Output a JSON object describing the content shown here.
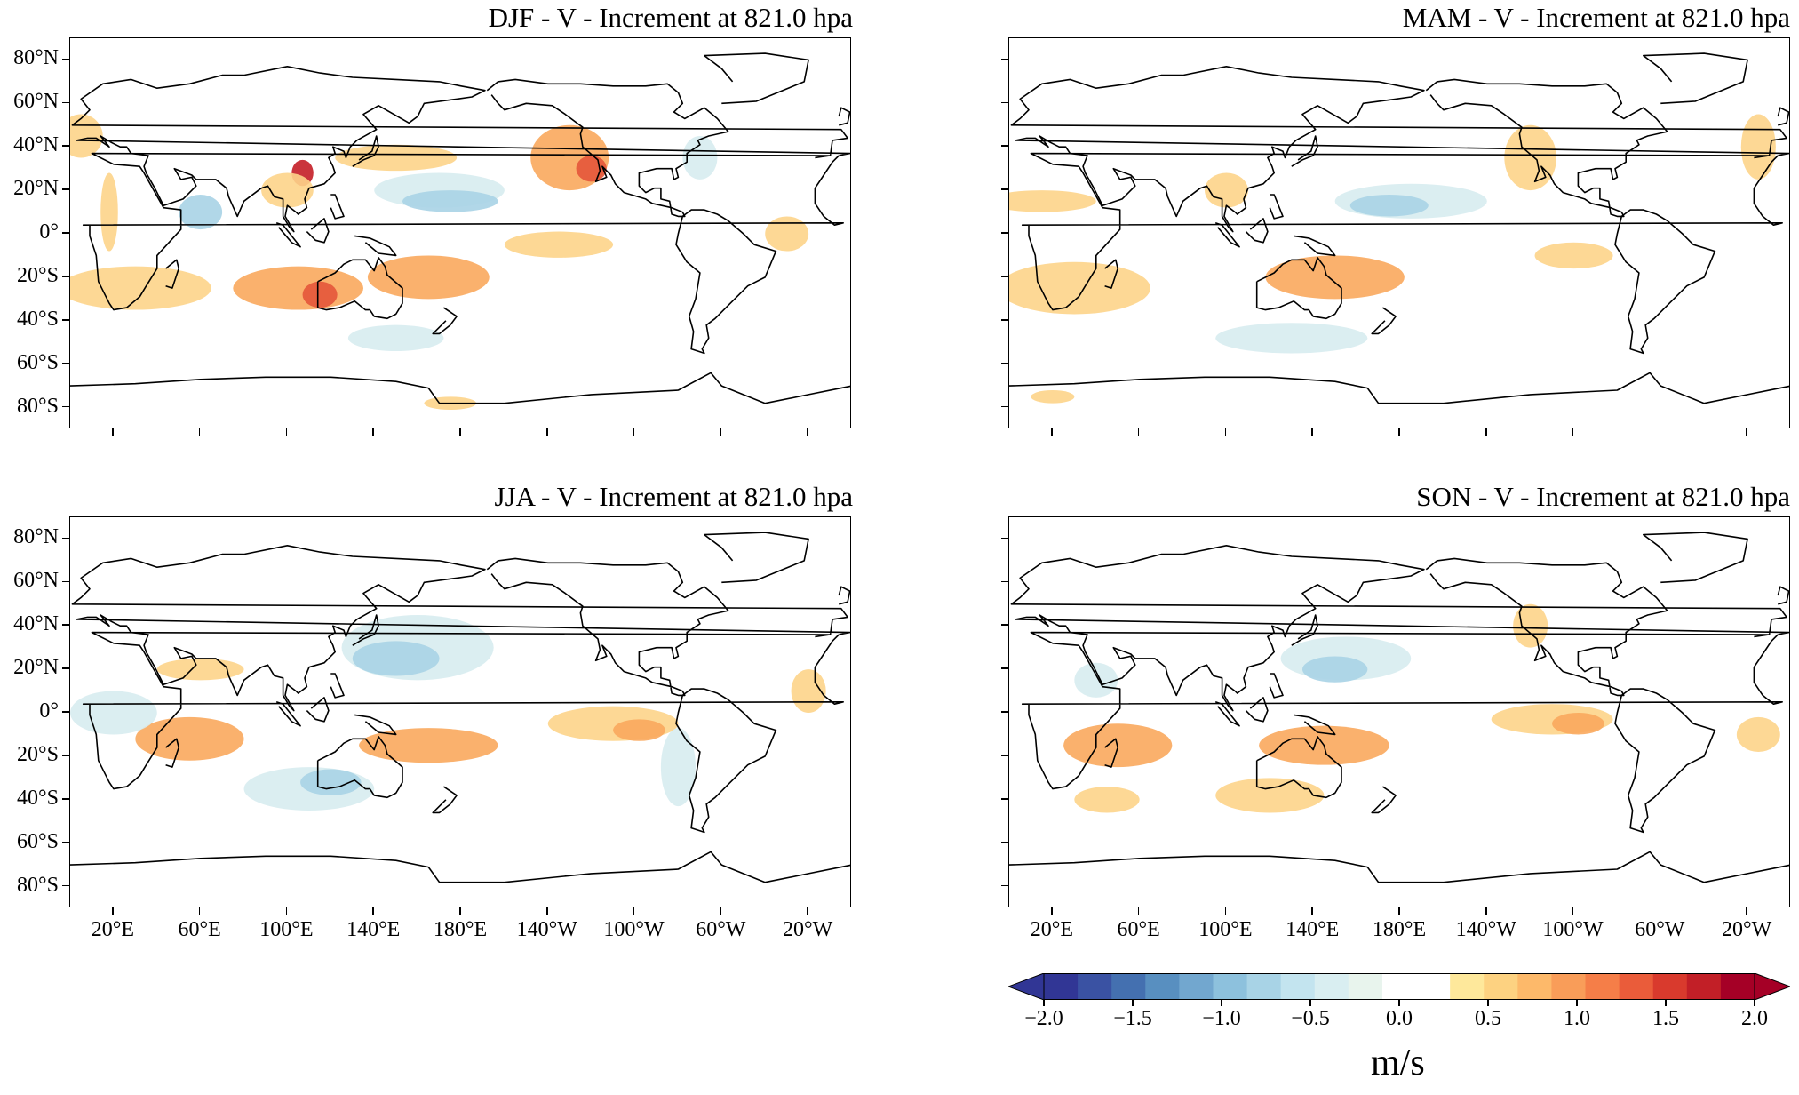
{
  "panels": [
    {
      "id": "djf",
      "title": "DJF - V - Increment at 821.0 hpa",
      "show_lat_labels": true,
      "show_lon_labels": false
    },
    {
      "id": "mam",
      "title": "MAM - V - Increment at 821.0 hpa",
      "show_lat_labels": false,
      "show_lon_labels": false
    },
    {
      "id": "jja",
      "title": "JJA - V - Increment at 821.0 hpa",
      "show_lat_labels": true,
      "show_lon_labels": true
    },
    {
      "id": "son",
      "title": "SON - V - Increment at 821.0 hpa",
      "show_lat_labels": false,
      "show_lon_labels": true
    }
  ],
  "lat_labels": [
    "80°N",
    "60°N",
    "40°N",
    "20°N",
    "0°",
    "20°S",
    "40°S",
    "60°S",
    "80°S"
  ],
  "lon_labels": [
    "20°E",
    "60°E",
    "100°E",
    "140°E",
    "180°E",
    "140°W",
    "100°W",
    "60°W",
    "20°W"
  ],
  "colorbar": {
    "unit": "m/s",
    "min": -2.0,
    "max": 2.0,
    "extend": "both",
    "tick_labels": [
      "−2.0",
      "−1.5",
      "−1.0",
      "−0.5",
      "0.0",
      "0.5",
      "1.0",
      "1.5",
      "2.0"
    ],
    "colors": [
      "#313695",
      "#3a52a3",
      "#4470b0",
      "#588fc0",
      "#72a7cf",
      "#8dc1dd",
      "#a8d3e6",
      "#c3e4ef",
      "#d9eef1",
      "#e8f4ed",
      "#ffffff",
      "#ffffff",
      "#fee89b",
      "#fdd281",
      "#fdb96a",
      "#f99d59",
      "#f57e48",
      "#ea5c3a",
      "#d93a2d",
      "#c21f27",
      "#a50026"
    ]
  },
  "colors": {
    "coast": "#000000",
    "warm_light": "#fdd48a",
    "warm_mid": "#f9a85d",
    "warm_strong": "#e4563a",
    "warm_max": "#c41e27",
    "cool_light": "#d7ecef",
    "cool_mid": "#a9d3e6",
    "cool_strong": "#7ab0d4"
  }
}
